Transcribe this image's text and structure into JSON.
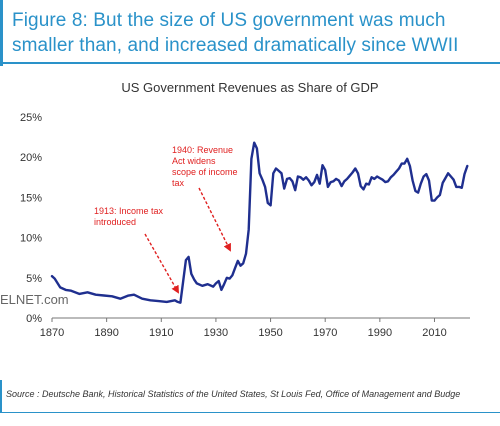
{
  "figure": {
    "title": "Figure 8: But the size of US government was much smaller than, and increased dramatically since WWII",
    "source": "Source : Deutsche Bank, Historical Statistics of the United States, St Louis Fed, Office of Management and Budge",
    "watermark": "ELNET.com",
    "accent_color": "#2a92c9"
  },
  "chart_data": {
    "type": "line",
    "title": "US Government Revenues as Share of GDP",
    "xlabel": "",
    "ylabel": "",
    "xlim": [
      1870,
      2023
    ],
    "ylim": [
      0,
      25
    ],
    "x_ticks": [
      1870,
      1890,
      1910,
      1930,
      1950,
      1970,
      1990,
      2010
    ],
    "y_ticks": [
      0,
      5,
      10,
      15,
      20,
      25
    ],
    "y_tick_labels": [
      "0%",
      "5%",
      "10%",
      "15%",
      "20%",
      "25%"
    ],
    "grid": false,
    "line_color": "#1f2f8f",
    "series": [
      {
        "x": [
          1870,
          1871,
          1873,
          1875,
          1877,
          1880,
          1883,
          1886,
          1889,
          1892,
          1895,
          1898,
          1900,
          1903,
          1906,
          1909,
          1912,
          1915,
          1916,
          1917,
          1918,
          1919,
          1920,
          1921,
          1922,
          1923,
          1925,
          1927,
          1929,
          1930,
          1931,
          1932,
          1933,
          1934,
          1935,
          1936,
          1937,
          1938,
          1939,
          1940,
          1941,
          1942,
          1943,
          1944,
          1945,
          1946,
          1947,
          1948,
          1949,
          1950,
          1951,
          1952,
          1953,
          1954,
          1955,
          1956,
          1957,
          1958,
          1959,
          1960,
          1961,
          1962,
          1963,
          1964,
          1965,
          1966,
          1967,
          1968,
          1969,
          1970,
          1971,
          1972,
          1973,
          1974,
          1975,
          1976,
          1977,
          1978,
          1979,
          1980,
          1981,
          1982,
          1983,
          1984,
          1985,
          1986,
          1987,
          1988,
          1989,
          1990,
          1991,
          1992,
          1993,
          1994,
          1995,
          1996,
          1997,
          1998,
          1999,
          2000,
          2001,
          2002,
          2003,
          2004,
          2005,
          2006,
          2007,
          2008,
          2009,
          2010,
          2011,
          2012,
          2013,
          2014,
          2015,
          2016,
          2017,
          2018,
          2019,
          2020,
          2021,
          2022
        ],
        "y": [
          5.2,
          4.9,
          3.8,
          3.5,
          3.4,
          3.0,
          3.2,
          2.9,
          2.8,
          2.7,
          2.4,
          2.8,
          2.9,
          2.4,
          2.2,
          2.1,
          2.0,
          2.2,
          2.0,
          1.9,
          4.5,
          7.2,
          7.6,
          5.5,
          4.8,
          4.3,
          4.0,
          4.2,
          3.9,
          4.3,
          4.6,
          3.5,
          4.2,
          5.0,
          4.9,
          5.3,
          6.2,
          7.1,
          6.5,
          6.8,
          8.0,
          11.0,
          19.8,
          21.8,
          21.1,
          18.0,
          17.2,
          16.3,
          14.3,
          14.0,
          18.0,
          18.6,
          18.3,
          18.0,
          16.1,
          17.3,
          17.4,
          17.0,
          15.9,
          17.6,
          17.5,
          17.2,
          17.5,
          17.1,
          16.5,
          16.9,
          17.8,
          16.7,
          19.0,
          18.4,
          16.3,
          16.9,
          17.0,
          17.3,
          17.1,
          16.4,
          17.0,
          17.3,
          17.7,
          18.1,
          18.6,
          18.0,
          16.4,
          16.0,
          16.7,
          16.6,
          17.5,
          17.3,
          17.6,
          17.4,
          17.2,
          16.9,
          17.0,
          17.5,
          17.8,
          18.2,
          18.6,
          19.2,
          19.2,
          19.8,
          18.9,
          17.1,
          15.8,
          15.6,
          16.7,
          17.6,
          17.9,
          17.1,
          14.6,
          14.6,
          15.0,
          15.3,
          16.8,
          17.4,
          18.0,
          17.6,
          17.2,
          16.3,
          16.3,
          16.2,
          17.9,
          18.9
        ]
      }
    ],
    "annotations": [
      {
        "text": "1913: Income tax introduced",
        "lines": [
          "1913: Income tax",
          "introduced"
        ],
        "color": "#e02020",
        "point_to": [
          1918,
          2.2
        ]
      },
      {
        "text": "1940: Revenue Act widens scope of income tax",
        "lines": [
          "1940: Revenue",
          "Act widens",
          "scope of income",
          "tax"
        ],
        "color": "#e02020",
        "point_to": [
          1939,
          8.3
        ]
      }
    ]
  }
}
